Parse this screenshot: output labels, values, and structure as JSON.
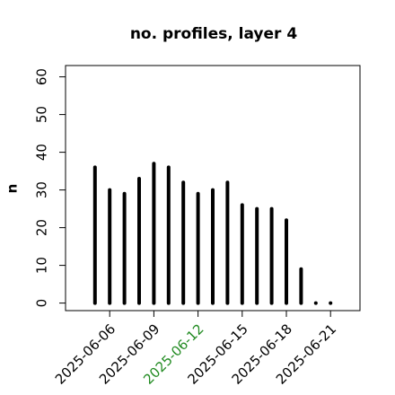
{
  "chart_data": {
    "type": "bar",
    "title": "no. profiles, layer 4",
    "y_label": "n",
    "x": [
      "2025-06-05",
      "2025-06-06",
      "2025-06-07",
      "2025-06-08",
      "2025-06-09",
      "2025-06-10",
      "2025-06-11",
      "2025-06-12",
      "2025-06-13",
      "2025-06-14",
      "2025-06-15",
      "2025-06-16",
      "2025-06-17",
      "2025-06-18",
      "2025-06-19",
      "2025-06-20",
      "2025-06-21"
    ],
    "values": [
      36,
      30,
      29,
      33,
      37,
      36,
      32,
      29,
      30,
      32,
      26,
      25,
      25,
      22,
      9,
      0,
      0
    ],
    "color": "#000000",
    "xlim": [
      "2025-06-03",
      "2025-06-23"
    ],
    "xticks": [
      "2025-06-06",
      "2025-06-09",
      "2025-06-12",
      "2025-06-15",
      "2025-06-18",
      "2025-06-21"
    ],
    "xtick_colors": [
      "#000000",
      "#000000",
      "#228b22",
      "#000000",
      "#000000",
      "#000000"
    ],
    "ylim": [
      -2,
      63
    ],
    "yticks": [
      0,
      10,
      20,
      30,
      40,
      50,
      60
    ]
  }
}
